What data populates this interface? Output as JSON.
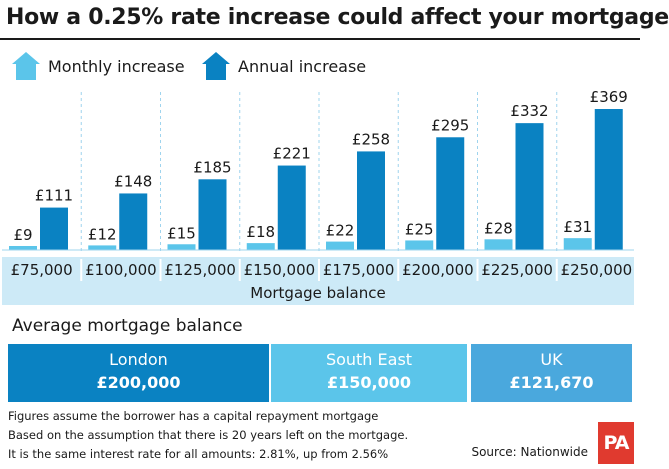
{
  "header": {
    "title": "How a 0.25% rate increase could affect your mortgage"
  },
  "legend": {
    "monthly": "Monthly increase",
    "annual": "Annual increase",
    "monthly_icon": "house-icon",
    "annual_icon": "house-icon"
  },
  "colors": {
    "monthly": "#5bc5ea",
    "annual": "#0a82c2",
    "axis_band": "#cdeaf7",
    "london": "#0a82c2",
    "south_east": "#5bc5ea",
    "uk": "#4aa8dd"
  },
  "chart_data": {
    "type": "bar",
    "categories": [
      "£75,000",
      "£100,000",
      "£125,000",
      "£150,000",
      "£175,000",
      "£200,000",
      "£225,000",
      "£250,000"
    ],
    "series": [
      {
        "name": "Monthly increase",
        "values": [
          9,
          12,
          15,
          18,
          22,
          25,
          28,
          31
        ],
        "labels": [
          "£9",
          "£12",
          "£15",
          "£18",
          "£22",
          "£25",
          "£28",
          "£31"
        ]
      },
      {
        "name": "Annual increase",
        "values": [
          111,
          148,
          185,
          221,
          258,
          295,
          332,
          369
        ],
        "labels": [
          "£111",
          "£148",
          "£185",
          "£221",
          "£258",
          "£295",
          "£332",
          "£369"
        ]
      }
    ],
    "title": "How a 0.25% rate increase could affect your mortgage",
    "xlabel": "Mortgage balance",
    "ylabel": "",
    "ylim": [
      0,
      369
    ],
    "grid": false,
    "legend_position": "top-left"
  },
  "average": {
    "heading": "Average mortgage balance",
    "regions": [
      {
        "name": "London",
        "value": "£200,000"
      },
      {
        "name": "South East",
        "value": "£150,000"
      },
      {
        "name": "UK",
        "value": "£121,670"
      }
    ]
  },
  "notes": [
    "Figures assume the borrower has a capital repayment mortgage",
    "Based on the assumption that there is 20 years left on the mortgage.",
    "It is the same interest rate for all amounts: 2.81%, up from 2.56%"
  ],
  "source": "Source: Nationwide",
  "logo_text": "PA"
}
